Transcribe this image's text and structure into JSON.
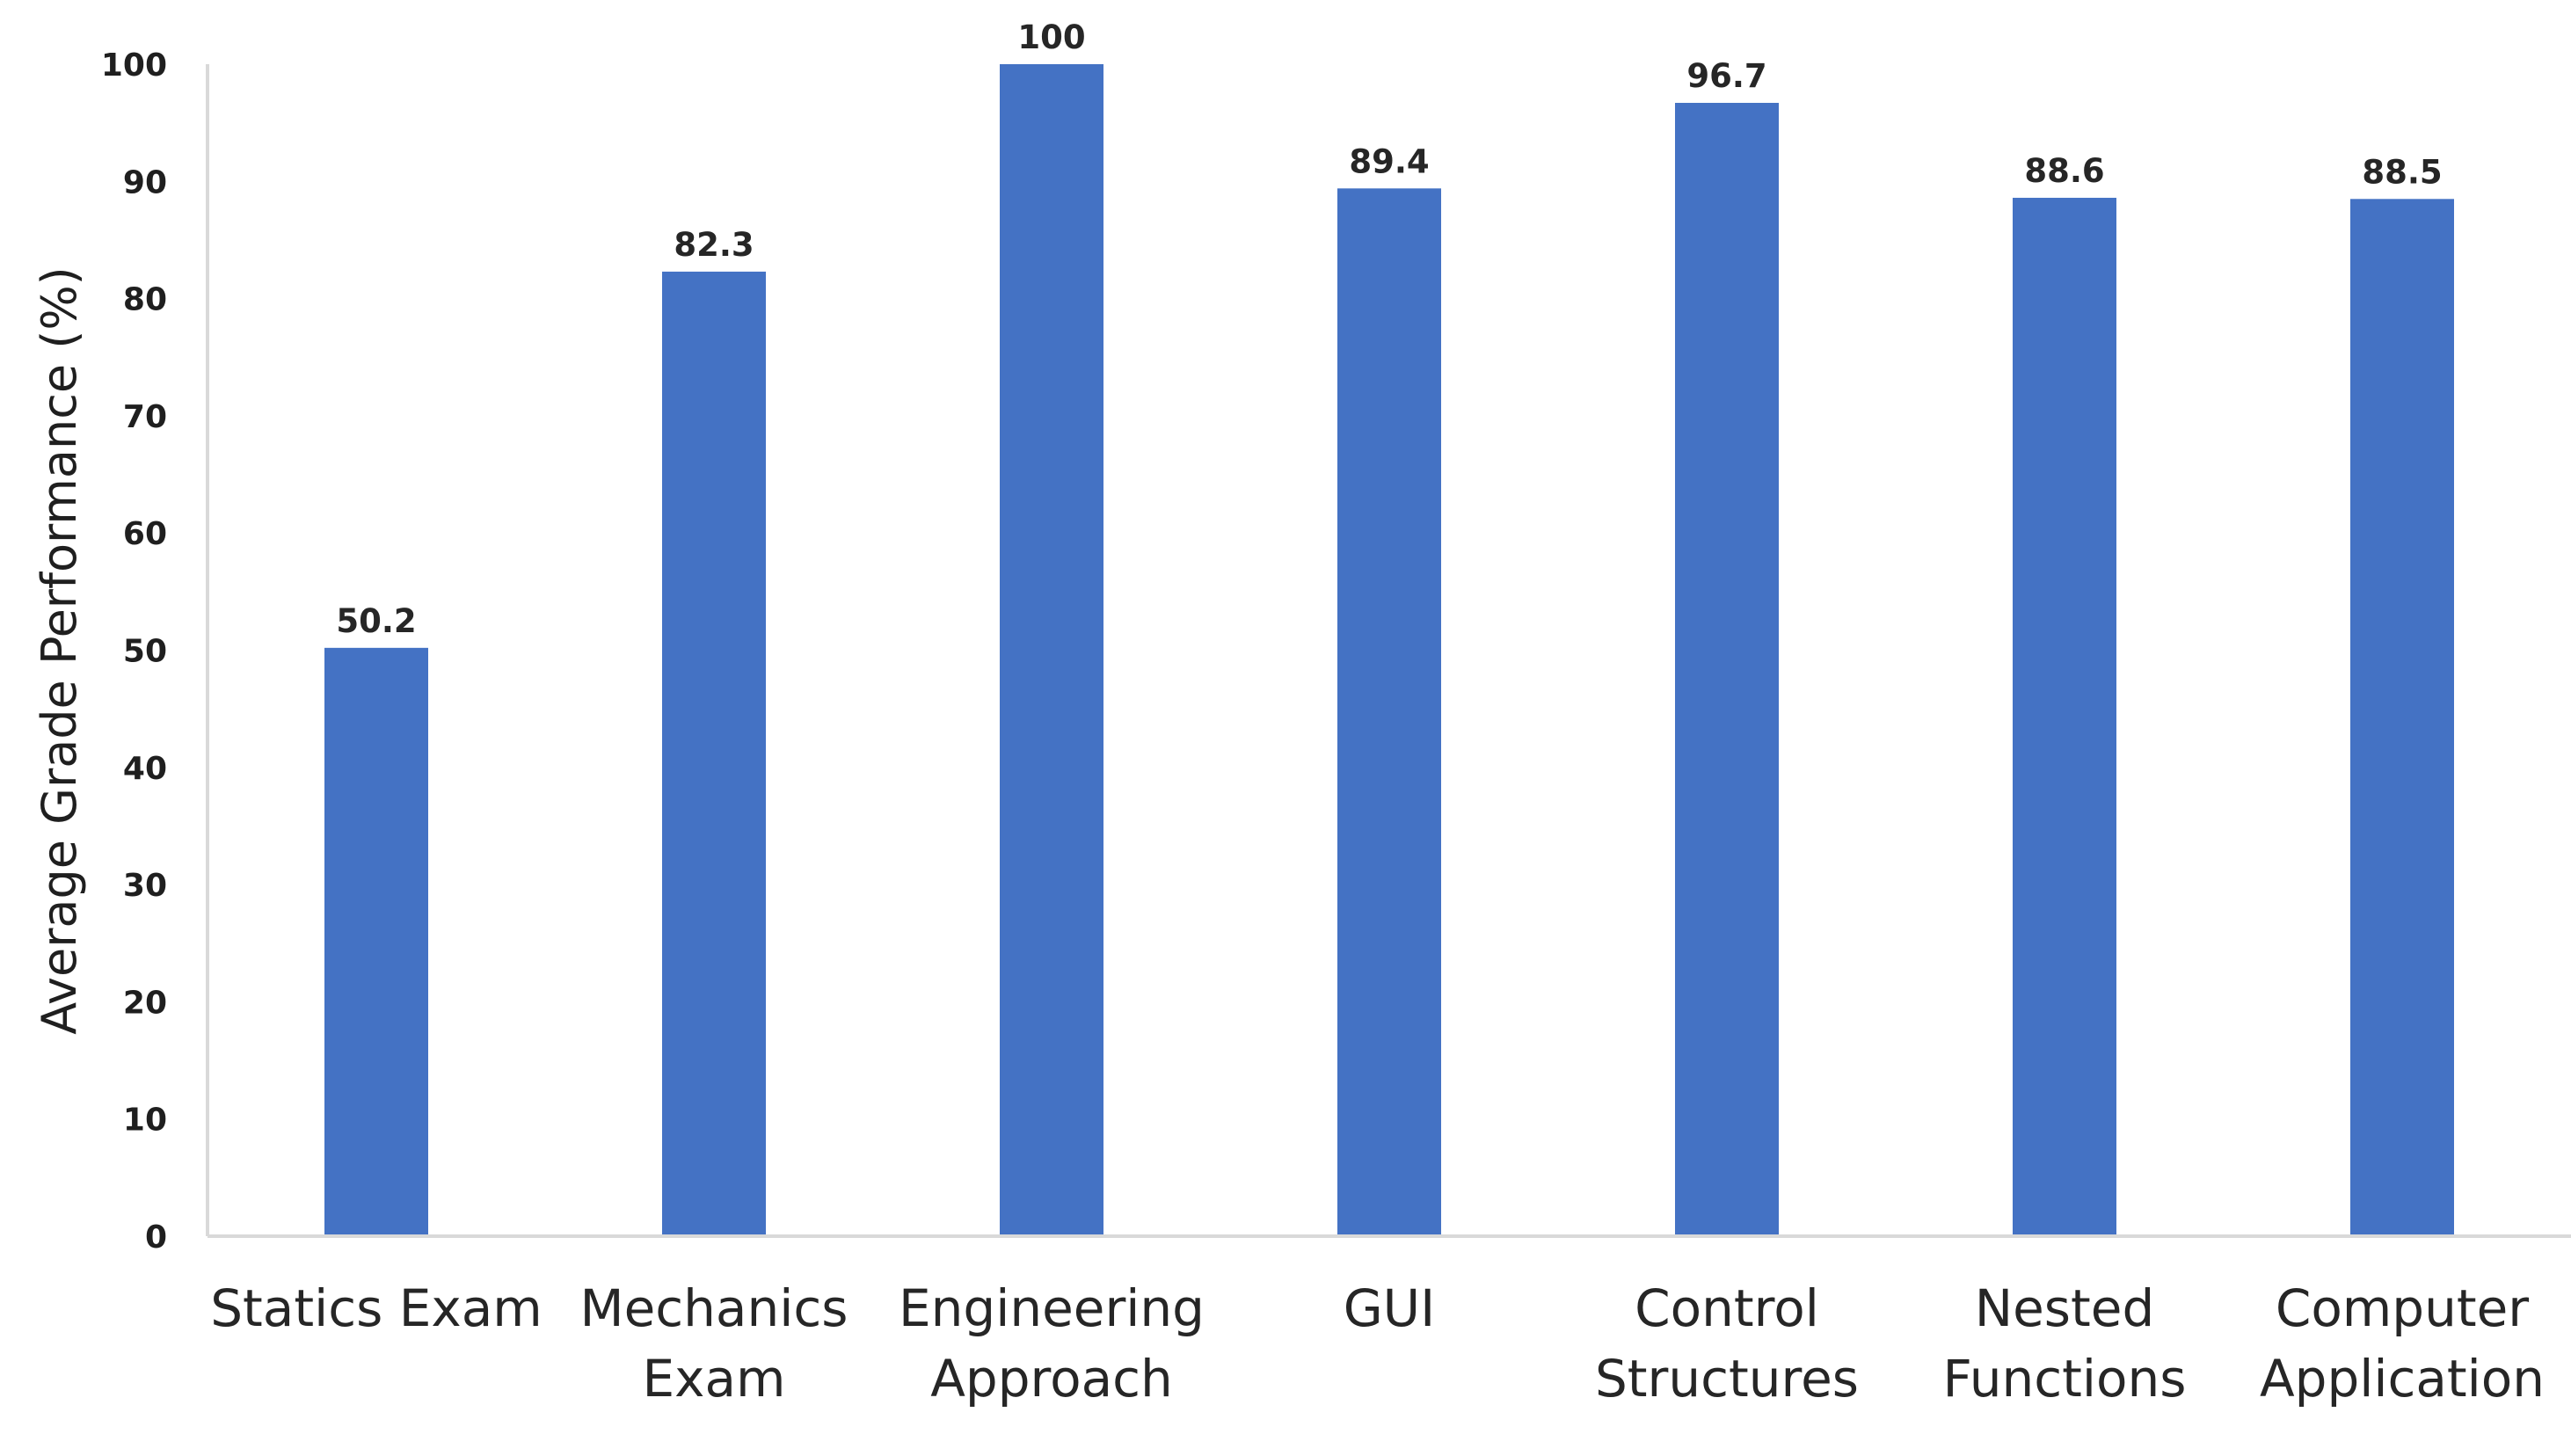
{
  "chart_data": {
    "type": "bar",
    "title": "",
    "xlabel": "",
    "ylabel": "Average Grade Performance (%)",
    "ylim": [
      0,
      100
    ],
    "yticks": [
      0,
      10,
      20,
      30,
      40,
      50,
      60,
      70,
      80,
      90,
      100
    ],
    "grid": false,
    "bar_color": "#4472C4",
    "categories": [
      [
        "Statics Exam"
      ],
      [
        "Mechanics",
        "Exam"
      ],
      [
        "Engineering",
        "Approach"
      ],
      [
        "GUI"
      ],
      [
        "Control",
        "Structures"
      ],
      [
        "Nested",
        "Functions"
      ],
      [
        "Computer",
        "Application"
      ]
    ],
    "values": [
      50.2,
      82.3,
      100,
      89.4,
      96.7,
      88.6,
      88.5
    ],
    "data_labels": [
      "50.2",
      "82.3",
      "100",
      "89.4",
      "96.7",
      "88.6",
      "88.5"
    ]
  }
}
